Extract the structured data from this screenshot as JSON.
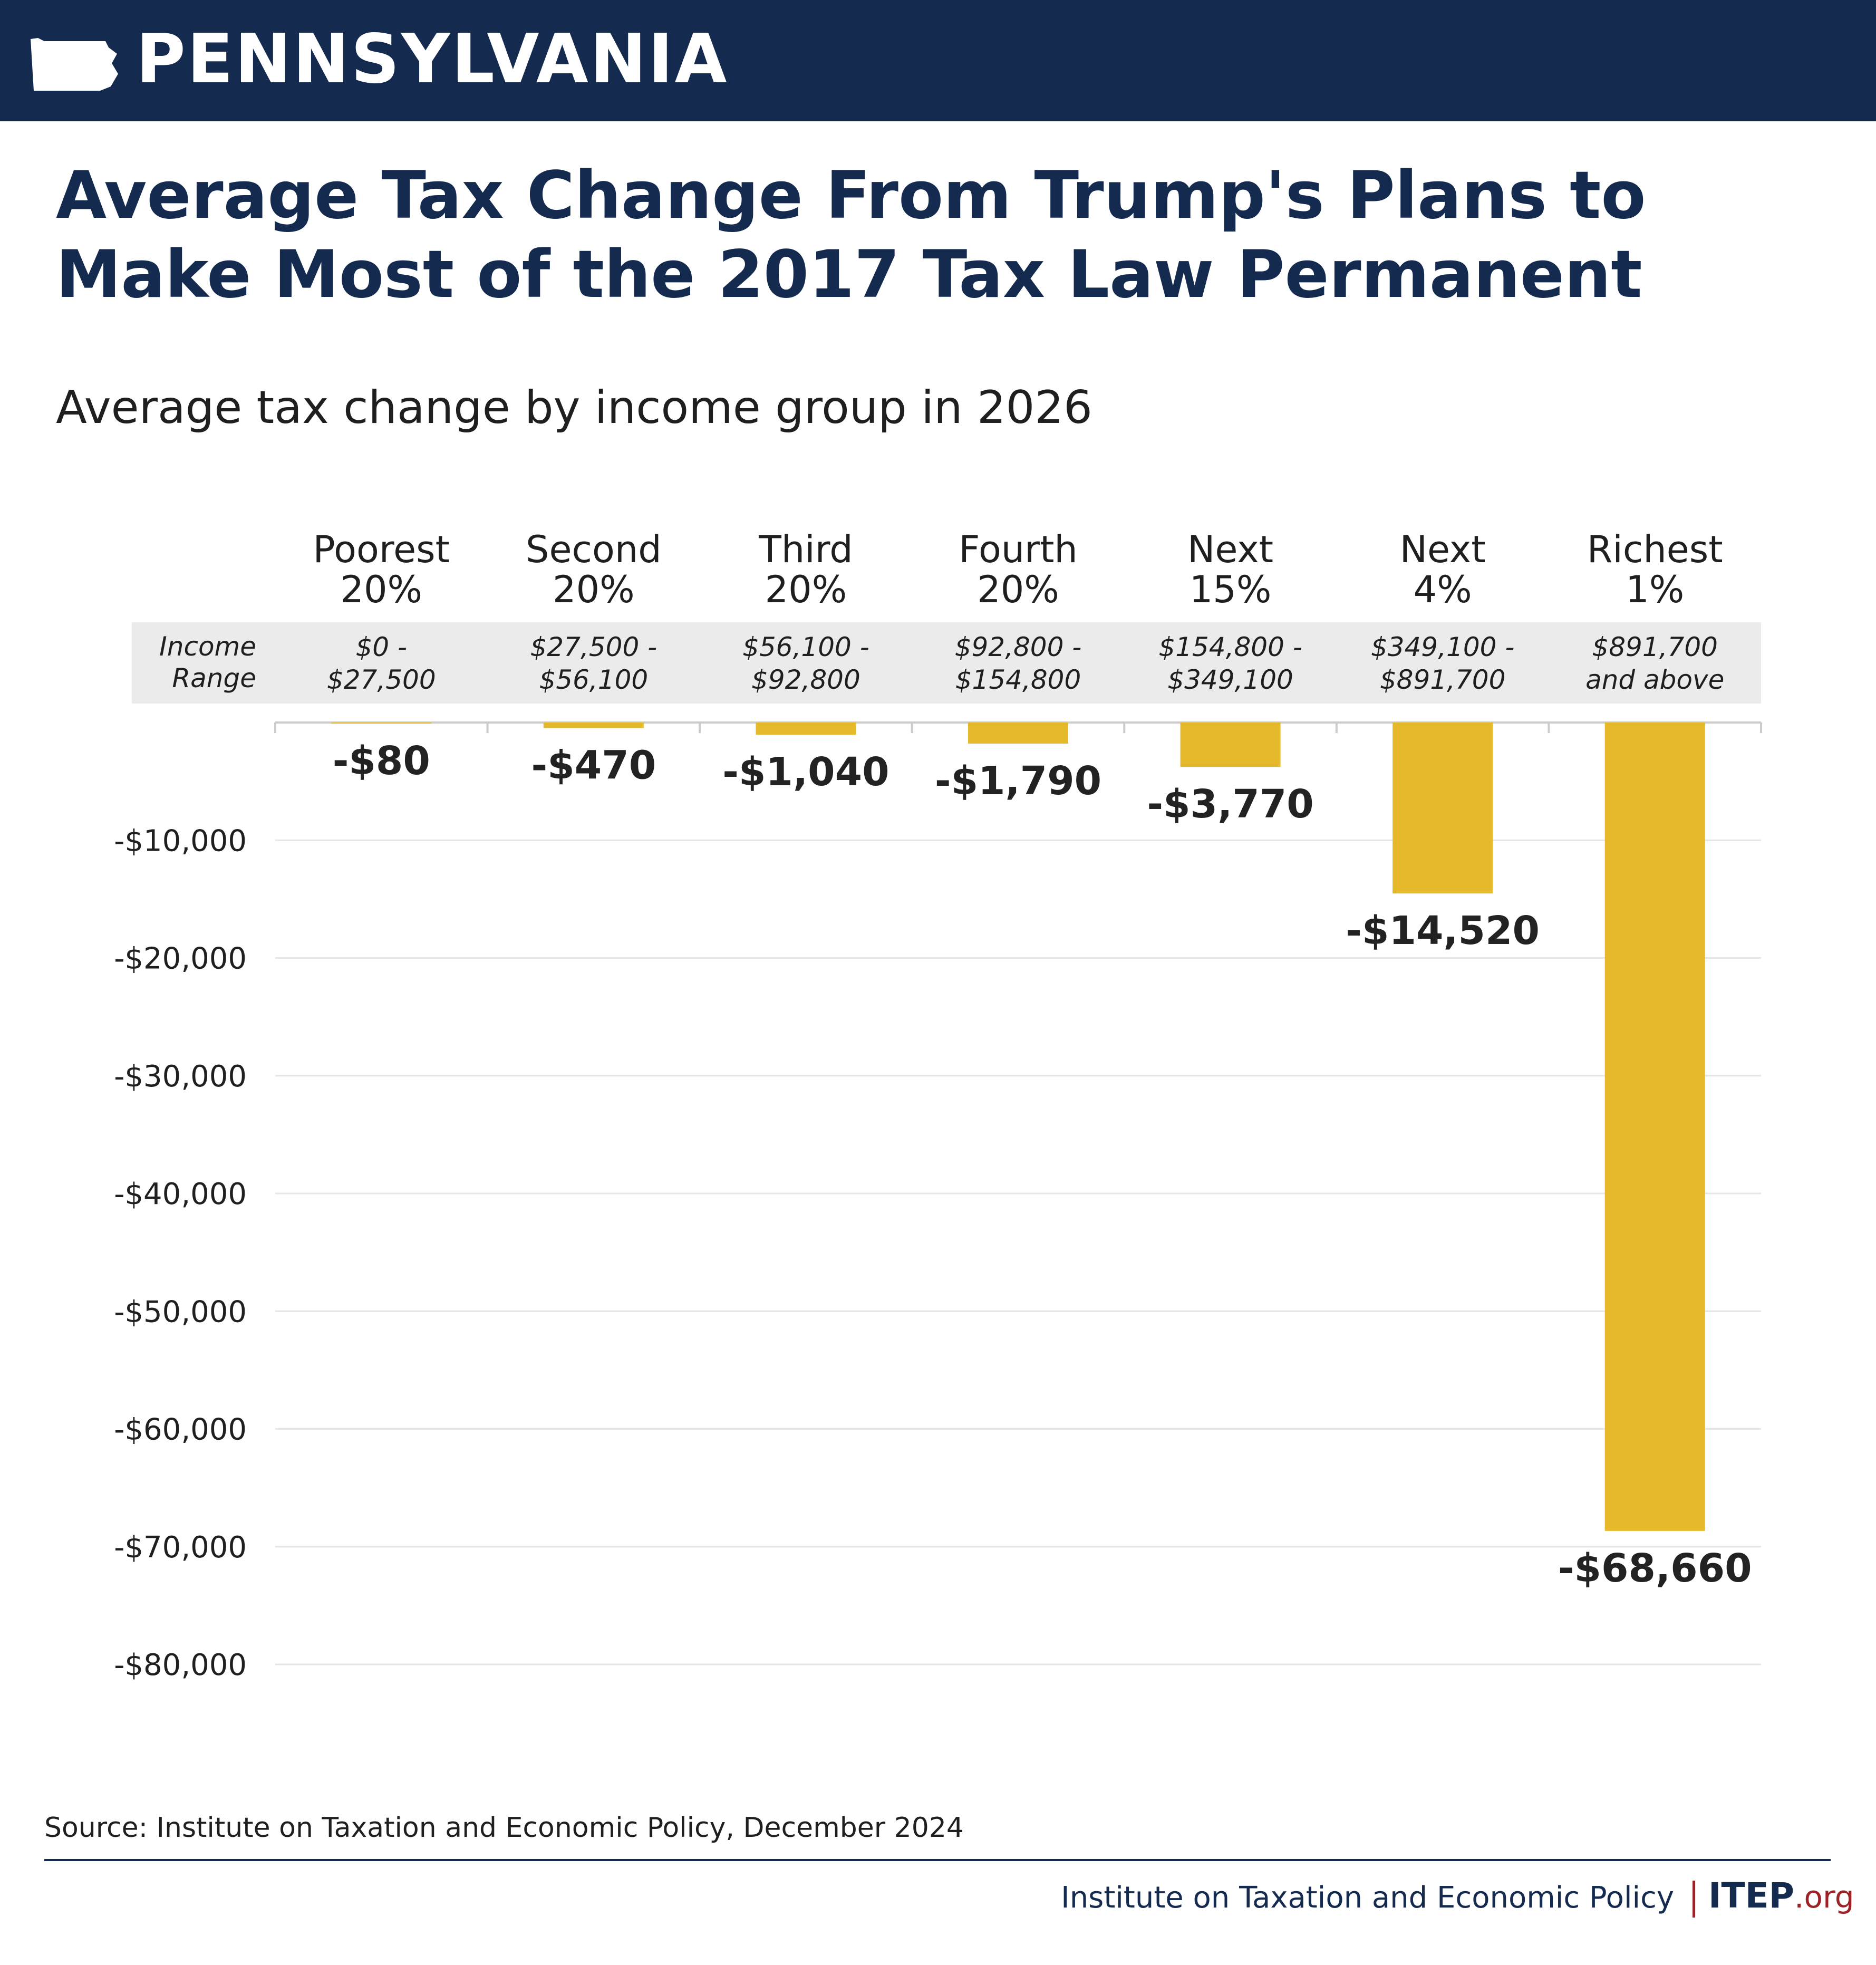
{
  "header": {
    "state": "PENNSYLVANIA",
    "state_icon": "pennsylvania-state-shape-icon",
    "bar_color": "#142a4f"
  },
  "title": "Average Tax Change From Trump's Plans to Make Most of the 2017 Tax Law Permanent",
  "chart_data": {
    "type": "bar",
    "title": "Average tax change by income group in 2026",
    "categories": [
      [
        "Poorest",
        "20%"
      ],
      [
        "Second",
        "20%"
      ],
      [
        "Third",
        "20%"
      ],
      [
        "Fourth",
        "20%"
      ],
      [
        "Next",
        "15%"
      ],
      [
        "Next",
        "4%"
      ],
      [
        "Richest",
        "1%"
      ]
    ],
    "income_range_title": [
      "Income",
      "Range"
    ],
    "income_ranges": [
      [
        "$0 -",
        "$27,500"
      ],
      [
        "$27,500 -",
        "$56,100"
      ],
      [
        "$56,100 -",
        "$92,800"
      ],
      [
        "$92,800 -",
        "$154,800"
      ],
      [
        "$154,800 -",
        "$349,100"
      ],
      [
        "$349,100 -",
        "$891,700"
      ],
      [
        "$891,700",
        "and above"
      ]
    ],
    "values": [
      -80,
      -470,
      -1040,
      -1790,
      -3770,
      -14520,
      -68660
    ],
    "value_labels": [
      "-$80",
      "-$470",
      "-$1,040",
      "-$1,790",
      "-$3,770",
      "-$14,520",
      "-$68,660"
    ],
    "ylim": [
      -80000,
      0
    ],
    "yticks": [
      -10000,
      -20000,
      -30000,
      -40000,
      -50000,
      -60000,
      -70000,
      -80000
    ],
    "ytick_labels": [
      "-$10,000",
      "-$20,000",
      "-$30,000",
      "-$40,000",
      "-$50,000",
      "-$60,000",
      "-$70,000",
      "-$80,000"
    ],
    "grid": true,
    "bar_color": "#e6b92a"
  },
  "source": "Source: Institute on Taxation and Economic Policy, December 2024",
  "footer": {
    "org_name": "Institute on Taxation and Economic Policy",
    "logo_main": "ITEP",
    "logo_suffix": ".org"
  }
}
